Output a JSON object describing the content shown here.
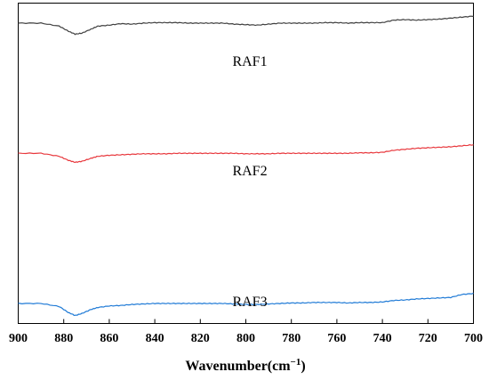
{
  "chart_data": {
    "type": "line",
    "title": "",
    "xlabel": "Wavenumber(cm",
    "xlabel_superscript": "−1",
    "xlabel_close": ")",
    "ylabel": "",
    "xlim": [
      900,
      700
    ],
    "x_reversed": true,
    "x_ticks": [
      900,
      880,
      860,
      840,
      820,
      800,
      780,
      760,
      740,
      720,
      700
    ],
    "x_tick_labels": [
      "900",
      "880",
      "860",
      "840",
      "820",
      "800",
      "780",
      "760",
      "740",
      "720",
      "700"
    ],
    "y_axis_visible": false,
    "y_units": "relative transmittance (offset stacked)",
    "grid": false,
    "legend": "none",
    "series": [
      {
        "name": "RAF1",
        "color": "#404040",
        "x": [
          900,
          890,
          882,
          878,
          875,
          872,
          868,
          865,
          860,
          855,
          850,
          845,
          840,
          835,
          830,
          825,
          820,
          815,
          810,
          805,
          800,
          795,
          790,
          785,
          780,
          775,
          770,
          765,
          760,
          755,
          750,
          745,
          740,
          735,
          730,
          725,
          720,
          715,
          710,
          705,
          700
        ],
        "y": [
          0.0,
          0.0,
          -3.0,
          -8.0,
          -11.0,
          -10.0,
          -6.0,
          -3.0,
          -2.0,
          -0.5,
          -1.0,
          0.0,
          0.5,
          0.5,
          0.5,
          0.0,
          0.0,
          0.0,
          0.0,
          -1.0,
          -1.5,
          -2.0,
          -1.0,
          0.0,
          0.0,
          0.0,
          0.0,
          0.5,
          0.5,
          0.0,
          0.5,
          0.5,
          0.5,
          3.0,
          3.5,
          3.0,
          3.5,
          4.0,
          5.0,
          6.0,
          7.0
        ]
      },
      {
        "name": "RAF2",
        "color": "#e8383d",
        "x": [
          900,
          890,
          882,
          878,
          875,
          872,
          868,
          865,
          860,
          855,
          850,
          845,
          840,
          835,
          830,
          825,
          820,
          815,
          810,
          805,
          800,
          795,
          790,
          785,
          780,
          775,
          770,
          765,
          760,
          755,
          750,
          745,
          740,
          735,
          730,
          725,
          720,
          715,
          710,
          705,
          700
        ],
        "y": [
          0.0,
          0.0,
          -3.0,
          -7.0,
          -9.0,
          -8.0,
          -5.0,
          -3.0,
          -2.0,
          -1.5,
          -1.0,
          -0.5,
          -0.5,
          -0.5,
          0.0,
          0.0,
          0.0,
          0.0,
          0.0,
          0.0,
          -0.5,
          -0.5,
          -0.5,
          0.0,
          0.0,
          0.0,
          0.0,
          0.0,
          0.0,
          0.0,
          0.5,
          0.5,
          1.0,
          3.0,
          4.0,
          5.0,
          5.5,
          6.0,
          6.5,
          7.5,
          8.5
        ]
      },
      {
        "name": "RAF3",
        "color": "#1f7ad6",
        "x": [
          900,
          890,
          882,
          878,
          875,
          872,
          868,
          865,
          860,
          855,
          850,
          845,
          840,
          835,
          830,
          825,
          820,
          815,
          810,
          805,
          800,
          795,
          790,
          785,
          780,
          775,
          770,
          765,
          760,
          755,
          750,
          745,
          740,
          735,
          730,
          725,
          720,
          715,
          710,
          705,
          700
        ],
        "y": [
          0.0,
          0.0,
          -3.0,
          -9.0,
          -12.0,
          -10.0,
          -6.0,
          -4.0,
          -2.5,
          -2.0,
          -1.0,
          -0.5,
          0.0,
          0.0,
          0.0,
          0.0,
          0.0,
          0.0,
          0.0,
          -0.5,
          -1.0,
          -1.0,
          -0.5,
          0.0,
          0.5,
          0.5,
          1.0,
          1.0,
          1.0,
          0.5,
          1.0,
          1.0,
          1.5,
          3.0,
          3.5,
          4.5,
          5.0,
          5.5,
          6.0,
          9.0,
          10.0
        ]
      }
    ],
    "series_offsets": [
      0,
      -130,
      -280
    ],
    "ylim": [
      -300,
      20
    ]
  }
}
